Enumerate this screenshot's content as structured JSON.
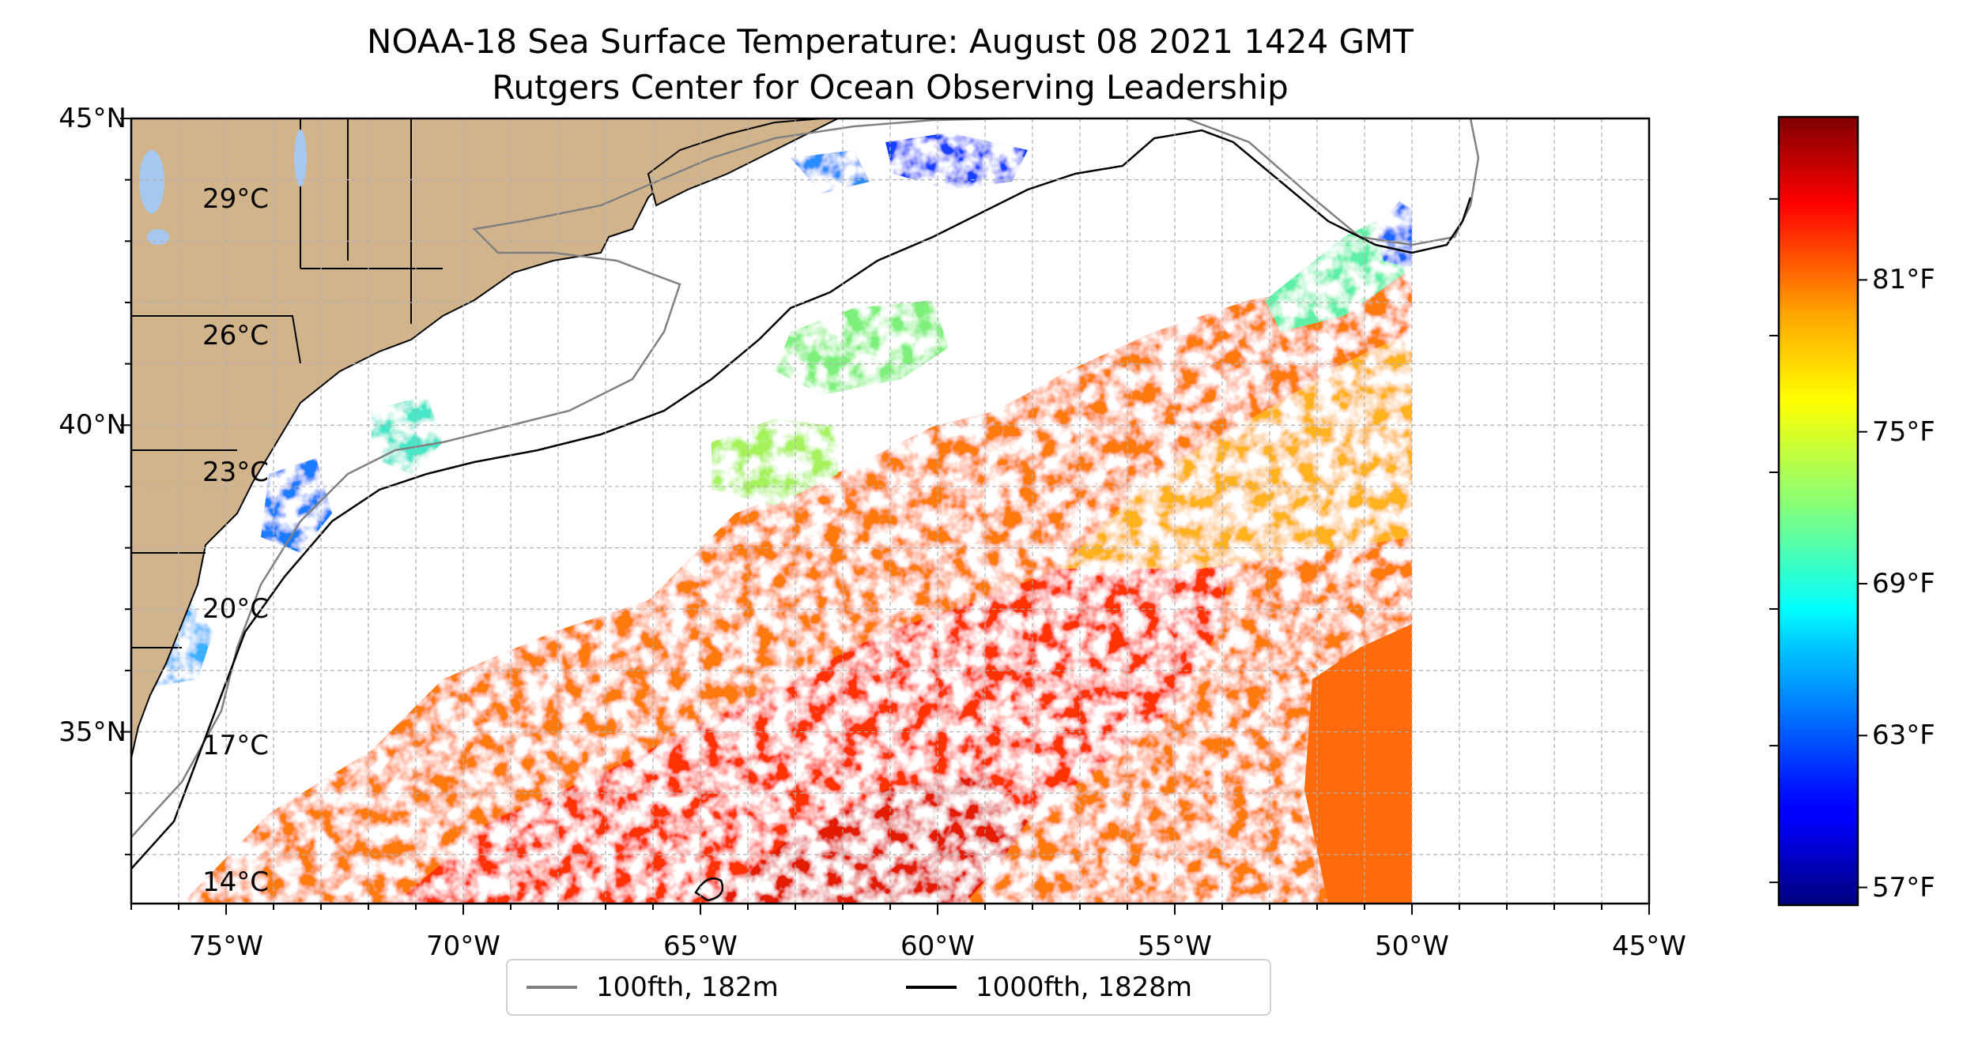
{
  "title": {
    "line1": "NOAA-18 Sea Surface Temperature: August 08 2021 1424 GMT",
    "line2": "Rutgers Center for Ocean Observing Leadership"
  },
  "map": {
    "lon_range": [
      -77,
      -45
    ],
    "lat_range": [
      32.2,
      45
    ],
    "lat_ticks": [
      {
        "value": 45,
        "label": "45°N"
      },
      {
        "value": 40,
        "label": "40°N"
      },
      {
        "value": 35,
        "label": "35°N"
      }
    ],
    "lon_ticks": [
      {
        "value": -75,
        "label": "75°W"
      },
      {
        "value": -70,
        "label": "70°W"
      },
      {
        "value": -65,
        "label": "65°W"
      },
      {
        "value": -60,
        "label": "60°W"
      },
      {
        "value": -55,
        "label": "55°W"
      },
      {
        "value": -50,
        "label": "50°W"
      },
      {
        "value": -45,
        "label": "45°W"
      }
    ],
    "gridlines": true,
    "land_color": "#d2b48c",
    "water_color": "#ffffff"
  },
  "colorbar": {
    "colormap": "jet",
    "range_c": [
      13.5,
      30.8
    ],
    "celsius_ticks": [
      {
        "value": 29,
        "label": "29°C"
      },
      {
        "value": 26,
        "label": "26°C"
      },
      {
        "value": 23,
        "label": "23°C"
      },
      {
        "value": 20,
        "label": "20°C"
      },
      {
        "value": 17,
        "label": "17°C"
      },
      {
        "value": 14,
        "label": "14°C"
      }
    ],
    "fahrenheit_ticks": [
      {
        "value": 81,
        "label": "81°F"
      },
      {
        "value": 75,
        "label": "75°F"
      },
      {
        "value": 69,
        "label": "69°F"
      },
      {
        "value": 63,
        "label": "63°F"
      },
      {
        "value": 57,
        "label": "57°F"
      }
    ]
  },
  "legend": {
    "placement": "bottom-center",
    "items": [
      {
        "label": "100fth, 182m",
        "color": "#808080"
      },
      {
        "label": "1000fth, 1828m",
        "color": "#000000"
      }
    ]
  }
}
